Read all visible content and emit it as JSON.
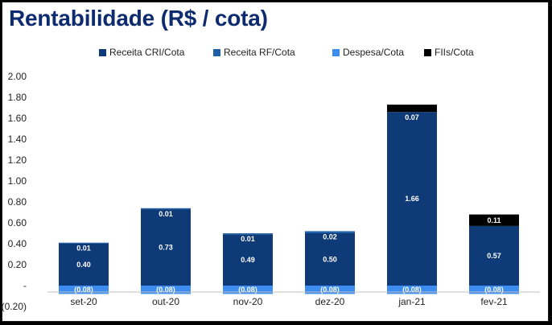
{
  "title": "Rentabilidade (R$ / cota)",
  "colors": {
    "title": "#0d2b6e",
    "receita_cri": "#0f3a78",
    "receita_rf": "#1f5fa8",
    "despesa": "#3d8df0",
    "fiis": "#000000",
    "grid": "#d9d9d9"
  },
  "chart_data": {
    "type": "bar",
    "stacked": true,
    "categories": [
      "set-20",
      "out-20",
      "nov-20",
      "dez-20",
      "jan-21",
      "fev-21"
    ],
    "series": [
      {
        "name": "Receita CRI/Cota",
        "color": "#0f3a78",
        "values": [
          0.4,
          0.73,
          0.49,
          0.5,
          1.66,
          0.57
        ]
      },
      {
        "name": "Receita RF/Cota",
        "color": "#1f5fa8",
        "values": [
          0.01,
          0.01,
          0.01,
          0.02,
          0.0,
          0.0
        ]
      },
      {
        "name": "Despesa/Cota",
        "color": "#3d8df0",
        "values": [
          -0.08,
          -0.08,
          -0.08,
          -0.08,
          -0.08,
          -0.08
        ]
      },
      {
        "name": "FIIs/Cota",
        "color": "#000000",
        "values": [
          0.0,
          0.0,
          0.0,
          0.0,
          0.07,
          0.11
        ]
      }
    ],
    "data_labels": {
      "cri": [
        "0.40",
        "0.73",
        "0.49",
        "0.50",
        "1.66",
        "0.57"
      ],
      "upper": [
        "0.01",
        "0.01",
        "0.01",
        "0.02",
        "0.07",
        "0.11"
      ],
      "despesa": [
        "(0.08)",
        "(0.08)",
        "(0.08)",
        "(0.08)",
        "(0.08)",
        "(0.08)"
      ]
    },
    "y_ticks": [
      {
        "value": 2.0,
        "label": "2.00"
      },
      {
        "value": 1.8,
        "label": "1.80"
      },
      {
        "value": 1.6,
        "label": "1.60"
      },
      {
        "value": 1.4,
        "label": "1.40"
      },
      {
        "value": 1.2,
        "label": "1.20"
      },
      {
        "value": 1.0,
        "label": "1.00"
      },
      {
        "value": 0.8,
        "label": "0.80"
      },
      {
        "value": 0.6,
        "label": "0.60"
      },
      {
        "value": 0.4,
        "label": "0.40"
      },
      {
        "value": 0.2,
        "label": "0.20"
      },
      {
        "value": 0.0,
        "label": "-"
      },
      {
        "value": -0.2,
        "label": "(0.20)"
      }
    ],
    "ylim": [
      -0.2,
      2.0
    ],
    "grid": false,
    "legend_position": "top"
  }
}
